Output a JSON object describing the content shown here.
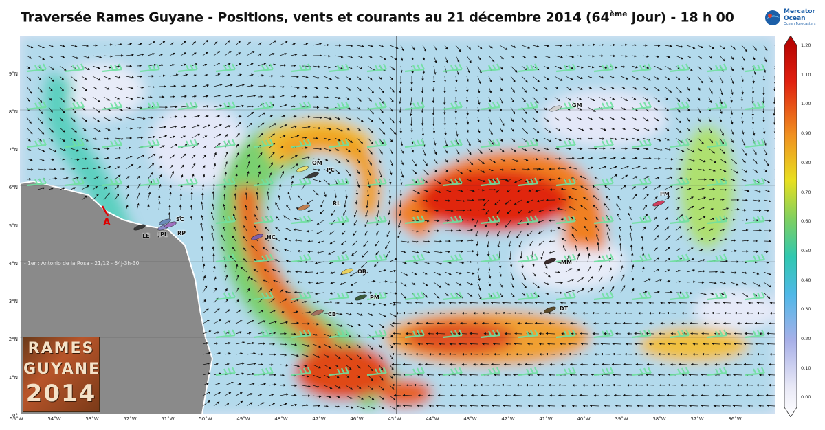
{
  "title": {
    "before": "Traversée Rames Guyane - Positions, vents et courants au 21 décembre 2014 (64",
    "sup": "ème",
    "after": " jour) - 18 h 00"
  },
  "logo": {
    "name_line1": "Mercator",
    "name_line2": "Ocean",
    "subtitle": "Ocean Forecasters"
  },
  "lat_labels": [
    "9°N",
    "8°N",
    "7°N",
    "6°N",
    "5°N",
    "4°N",
    "3°N",
    "2°N",
    "1°N",
    "0°"
  ],
  "lon_labels": [
    "55°W",
    "54°W",
    "53°W",
    "52°W",
    "51°W",
    "50°W",
    "49°W",
    "48°W",
    "47°W",
    "46°W",
    "45°W",
    "44°W",
    "43°W",
    "42°W",
    "41°W",
    "40°W",
    "39°W",
    "38°W",
    "37°W",
    "36°W"
  ],
  "record_text": "- 1er : Antonio de la Rosa - 21/12 - 64J-3h-30'",
  "marker_a": "A",
  "rames_logo": {
    "line1": "RAMES",
    "line2": "GUYANE",
    "line3": "2014"
  },
  "colorbar": {
    "ticks": [
      "1.20",
      "1.10",
      "1.00",
      "0.90",
      "0.80",
      "0.70",
      "0.60",
      "0.50",
      "0.40",
      "0.30",
      "0.20",
      "0.10",
      "0.00"
    ]
  },
  "boats": [
    {
      "label": "OM",
      "color": "#e8e070"
    },
    {
      "label": "PC",
      "color": "#3a3a3a"
    },
    {
      "label": "RL",
      "color": "#c08050"
    },
    {
      "label": "SC",
      "color": "#6a8ab8"
    },
    {
      "label": "LE",
      "color": "#3a3a3a"
    },
    {
      "label": "JPL",
      "color": "#8a8ac8"
    },
    {
      "label": "RP",
      "color": "#a070c0"
    },
    {
      "label": "HC",
      "color": "#8060a8"
    },
    {
      "label": "OB",
      "color": "#e8d060"
    },
    {
      "label": "PM",
      "color": "#3a5a3a"
    },
    {
      "label": "CB",
      "color": "#a07060"
    },
    {
      "label": "GM",
      "color": "#d0d0d0"
    },
    {
      "label": "PM",
      "color": "#d04060"
    },
    {
      "label": "MM",
      "color": "#3a2a2a"
    },
    {
      "label": "DT",
      "color": "#5a4a2a"
    }
  ]
}
